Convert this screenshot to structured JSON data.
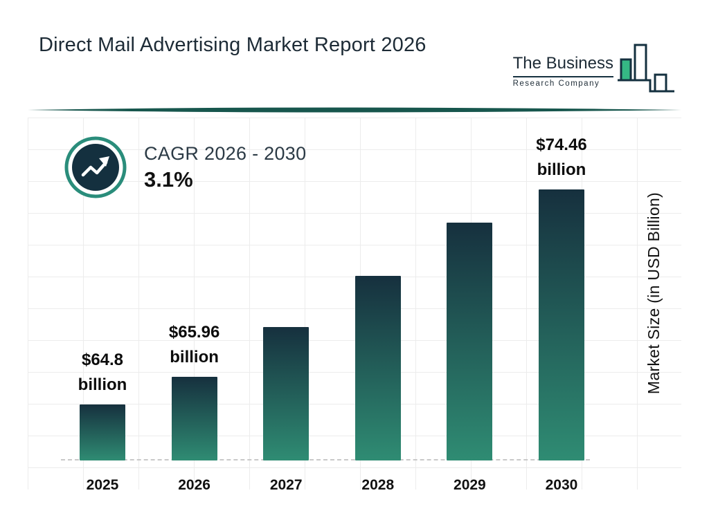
{
  "header": {
    "title": "Direct Mail Advertising Market Report 2026",
    "logo": {
      "line1": "The Business",
      "line2": "Research Company"
    }
  },
  "cagr": {
    "label": "CAGR 2026 - 2030",
    "value": "3.1%"
  },
  "chart_data": {
    "type": "bar",
    "title": "Direct Mail Advertising Market Report 2026",
    "categories": [
      "2025",
      "2026",
      "2027",
      "2028",
      "2029",
      "2030"
    ],
    "values": [
      64.8,
      65.96,
      68.0,
      70.11,
      72.29,
      74.46
    ],
    "bar_labels": [
      [
        "$64.8",
        "billion"
      ],
      [
        "$65.96",
        "billion"
      ],
      null,
      null,
      null,
      [
        "$74.46",
        "billion"
      ]
    ],
    "xlabel": "",
    "ylabel": "Market Size (in USD Billion)",
    "ylim": [
      62.5,
      76
    ],
    "grid": true,
    "legend": false,
    "bar_gradient_top": "#16303e",
    "bar_gradient_bottom": "#2f8c73"
  },
  "colors": {
    "accent_teal": "#2a8d7b",
    "navy": "#14303f",
    "logo_green": "#35b884",
    "divider": "#17564d"
  }
}
